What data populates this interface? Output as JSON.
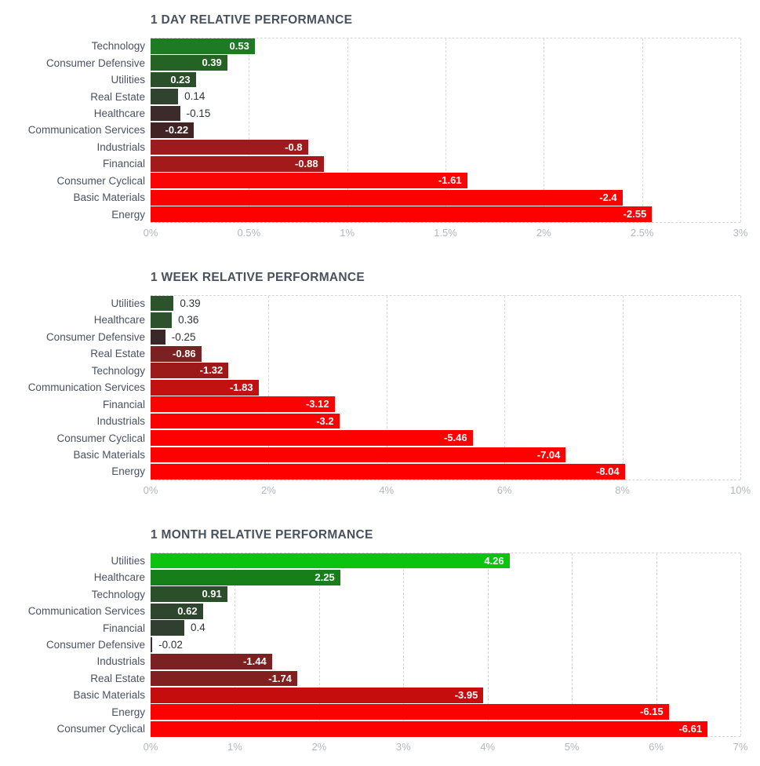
{
  "page": {
    "background": "#ffffff"
  },
  "palette": {
    "title_text": "#48515c",
    "category_text": "#4a5261",
    "value_text_outside": "#2e333a",
    "value_text_inside": "#ffffff",
    "axis_tick_text": "#b3b7bc",
    "gridline": "#d7d7d7",
    "positive_bright": "#0cc30f",
    "negative_bright": "#fe0000"
  },
  "chart_data": [
    {
      "type": "bar",
      "orientation": "horizontal",
      "title": "1 DAY RELATIVE PERFORMANCE",
      "xlabel": "",
      "ylabel": "",
      "unit": "%",
      "grid": true,
      "xlim": [
        0,
        3
      ],
      "ticks": [
        0,
        0.5,
        1,
        1.5,
        2,
        2.5,
        3
      ],
      "tick_labels": [
        "0%",
        "0.5%",
        "1%",
        "1.5%",
        "2%",
        "2.5%",
        "3%"
      ],
      "categories": [
        "Technology",
        "Consumer Defensive",
        "Utilities",
        "Real Estate",
        "Healthcare",
        "Communication Services",
        "Industrials",
        "Financial",
        "Consumer Cyclical",
        "Basic Materials",
        "Energy"
      ],
      "values": [
        0.53,
        0.39,
        0.23,
        0.14,
        -0.15,
        -0.22,
        -0.8,
        -0.88,
        -1.61,
        -2.4,
        -2.55
      ],
      "value_labels": [
        "0.53",
        "0.39",
        "0.23",
        "0.14",
        "-0.15",
        "-0.22",
        "-0.8",
        "-0.88",
        "-1.61",
        "-2.4",
        "-2.55"
      ],
      "bar_colors": [
        "#1e7a23",
        "#256325",
        "#2b4f2b",
        "#2f432e",
        "#3d2a2a",
        "#432424",
        "#9e1b1b",
        "#a41919",
        "#f90505",
        "#fd0101",
        "#fe0000"
      ]
    },
    {
      "type": "bar",
      "orientation": "horizontal",
      "title": "1 WEEK RELATIVE PERFORMANCE",
      "xlabel": "",
      "ylabel": "",
      "unit": "%",
      "grid": true,
      "xlim": [
        0,
        10
      ],
      "ticks": [
        0,
        2,
        4,
        6,
        8,
        10
      ],
      "tick_labels": [
        "0%",
        "2%",
        "4%",
        "6%",
        "8%",
        "10%"
      ],
      "categories": [
        "Utilities",
        "Healthcare",
        "Consumer Defensive",
        "Real Estate",
        "Technology",
        "Communication Services",
        "Financial",
        "Industrials",
        "Consumer Cyclical",
        "Basic Materials",
        "Energy"
      ],
      "values": [
        0.39,
        0.36,
        -0.25,
        -0.86,
        -1.32,
        -1.83,
        -3.12,
        -3.2,
        -5.46,
        -7.04,
        -8.04
      ],
      "value_labels": [
        "0.39",
        "0.36",
        "-0.25",
        "-0.86",
        "-1.32",
        "-1.83",
        "-3.12",
        "-3.2",
        "-5.46",
        "-7.04",
        "-8.04"
      ],
      "bar_colors": [
        "#2d532d",
        "#2e522e",
        "#3a2727",
        "#7a2222",
        "#9c1a1a",
        "#c11111",
        "#f90303",
        "#fb0202",
        "#fe0000",
        "#fe0000",
        "#fe0000"
      ]
    },
    {
      "type": "bar",
      "orientation": "horizontal",
      "title": "1 MONTH RELATIVE PERFORMANCE",
      "xlabel": "",
      "ylabel": "",
      "unit": "%",
      "grid": true,
      "xlim": [
        0,
        7
      ],
      "ticks": [
        0,
        1,
        2,
        3,
        4,
        5,
        6,
        7
      ],
      "tick_labels": [
        "0%",
        "1%",
        "2%",
        "3%",
        "4%",
        "5%",
        "6%",
        "7%"
      ],
      "categories": [
        "Utilities",
        "Healthcare",
        "Technology",
        "Communication Services",
        "Financial",
        "Consumer Defensive",
        "Industrials",
        "Real Estate",
        "Basic Materials",
        "Energy",
        "Consumer Cyclical"
      ],
      "values": [
        4.26,
        2.25,
        0.91,
        0.62,
        0.4,
        -0.02,
        -1.44,
        -1.74,
        -3.95,
        -6.15,
        -6.61
      ],
      "value_labels": [
        "4.26",
        "2.25",
        "0.91",
        "0.62",
        "0.4",
        "-0.02",
        "-1.44",
        "-1.74",
        "-3.95",
        "-6.15",
        "-6.61"
      ],
      "bar_colors": [
        "#0cc30f",
        "#177f19",
        "#2b4f2b",
        "#2d462d",
        "#303f30",
        "#3a2d2d",
        "#7b2121",
        "#822020",
        "#c50d0d",
        "#fb0101",
        "#fe0000"
      ]
    }
  ]
}
